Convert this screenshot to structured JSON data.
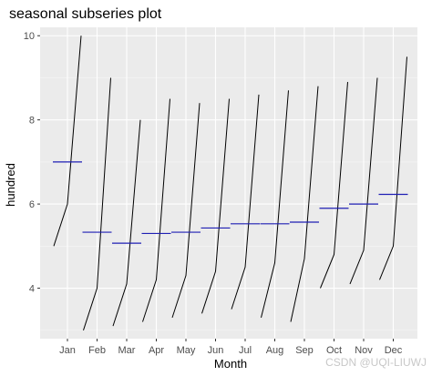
{
  "chart_data": {
    "type": "line",
    "title": "seasonal subseries plot",
    "xlabel": "Month",
    "ylabel": "hundred",
    "categories": [
      "Jan",
      "Feb",
      "Mar",
      "Apr",
      "May",
      "Jun",
      "Jul",
      "Aug",
      "Sep",
      "Oct",
      "Nov",
      "Dec"
    ],
    "ylim": [
      2.8,
      10.2
    ],
    "yticks": [
      4,
      6,
      8,
      10
    ],
    "grid": true,
    "series_color": "#000000",
    "mean_color": "#1f1fb4",
    "panel_background": "#ebebeb",
    "subseries": [
      {
        "month": "Jan",
        "values": [
          5.0,
          6.0,
          10.0
        ],
        "mean": 7.0
      },
      {
        "month": "Feb",
        "values": [
          3.0,
          4.0,
          9.0
        ],
        "mean": 5.33
      },
      {
        "month": "Mar",
        "values": [
          3.1,
          4.1,
          8.0
        ],
        "mean": 5.07
      },
      {
        "month": "Apr",
        "values": [
          3.2,
          4.2,
          8.5
        ],
        "mean": 5.3
      },
      {
        "month": "May",
        "values": [
          3.3,
          4.3,
          8.4
        ],
        "mean": 5.33
      },
      {
        "month": "Jun",
        "values": [
          3.4,
          4.4,
          8.5
        ],
        "mean": 5.43
      },
      {
        "month": "Jul",
        "values": [
          3.5,
          4.5,
          8.6
        ],
        "mean": 5.53
      },
      {
        "month": "Aug",
        "values": [
          3.3,
          4.6,
          8.7
        ],
        "mean": 5.53
      },
      {
        "month": "Sep",
        "values": [
          3.2,
          4.7,
          8.8
        ],
        "mean": 5.57
      },
      {
        "month": "Oct",
        "values": [
          4.0,
          4.8,
          8.9
        ],
        "mean": 5.9
      },
      {
        "month": "Nov",
        "values": [
          4.1,
          4.9,
          9.0
        ],
        "mean": 6.0
      },
      {
        "month": "Dec",
        "values": [
          4.2,
          5.0,
          9.5
        ],
        "mean": 6.23
      }
    ]
  },
  "watermark": "CSDN @UQI-LIUWJ"
}
